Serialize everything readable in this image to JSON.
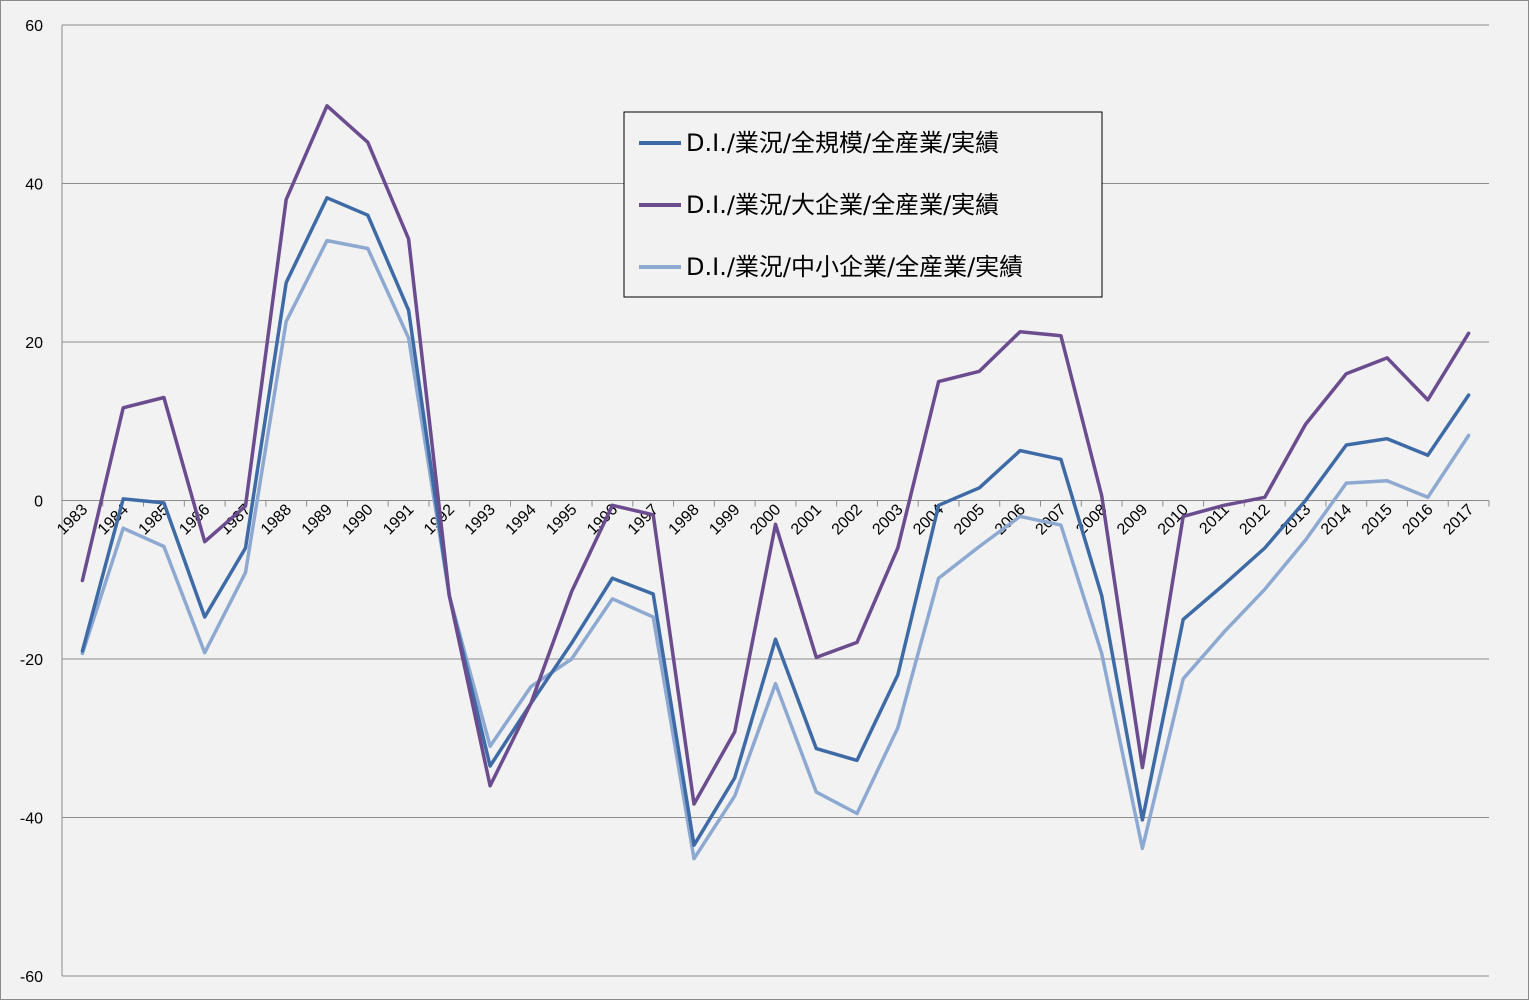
{
  "chart_data": {
    "type": "line",
    "x": [
      "1983",
      "1984",
      "1985",
      "1986",
      "1987",
      "1988",
      "1989",
      "1990",
      "1991",
      "1992",
      "1993",
      "1994",
      "1995",
      "1996",
      "1997",
      "1998",
      "1999",
      "2000",
      "2001",
      "2002",
      "2003",
      "2004",
      "2005",
      "2006",
      "2007",
      "2008",
      "2009",
      "2010",
      "2011",
      "2012",
      "2013",
      "2014",
      "2015",
      "2016",
      "2017"
    ],
    "ylim": [
      -60,
      60
    ],
    "yticks": [
      -60,
      -40,
      -20,
      0,
      20,
      40,
      60
    ],
    "grid": true,
    "legend_position": "top-center",
    "series": [
      {
        "name": "D.I./業況/全規模/全産業/実績",
        "color": "#3E6BA6",
        "values": [
          -19,
          0.2,
          -0.3,
          -14.7,
          -6,
          27.5,
          38.2,
          36,
          24,
          -12,
          -33.5,
          -25.6,
          -18,
          -9.8,
          -11.8,
          -43.5,
          -35,
          -17.5,
          -31.3,
          -32.8,
          -22,
          -0.6,
          1.6,
          6.3,
          5.2,
          -12,
          -40.3,
          -15,
          -10.6,
          -6,
          0,
          7,
          7.8,
          5.7,
          13.3
        ]
      },
      {
        "name": "D.I./業況/大企業/全産業/実績",
        "color": "#6A4C8F",
        "values": [
          -10.1,
          11.7,
          13,
          -5.2,
          -0.7,
          38,
          49.8,
          45.2,
          33,
          -12,
          -36,
          -25.6,
          -11.5,
          -0.6,
          -1.8,
          -38.3,
          -29.2,
          -3,
          -19.8,
          -17.9,
          -6,
          15,
          16.3,
          21.3,
          20.8,
          0.6,
          -33.7,
          -2,
          -0.6,
          0.4,
          9.6,
          16,
          18,
          12.7,
          21.1
        ]
      },
      {
        "name": "D.I./業況/中小企業/全産業/実績",
        "color": "#8EA9D1",
        "values": [
          -19.3,
          -3.5,
          -5.8,
          -19.2,
          -9.1,
          22.6,
          32.8,
          31.8,
          20.5,
          -12,
          -31,
          -23.5,
          -20,
          -12.4,
          -14.7,
          -45.2,
          -37.3,
          -23.1,
          -36.8,
          -39.5,
          -28.7,
          -9.8,
          -5.8,
          -2,
          -3.1,
          -19.3,
          -43.9,
          -22.5,
          -16.6,
          -11.2,
          -5,
          2.2,
          2.5,
          0.4,
          8.2
        ]
      }
    ]
  }
}
